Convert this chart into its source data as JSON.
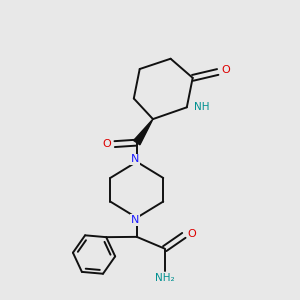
{
  "bg_color": "#e8e8e8",
  "atom_colors": {
    "N": "#1a1aff",
    "O": "#dd0000",
    "H": "#009090",
    "C": "#000000"
  },
  "bond_color": "#111111",
  "bond_width": 1.4
}
